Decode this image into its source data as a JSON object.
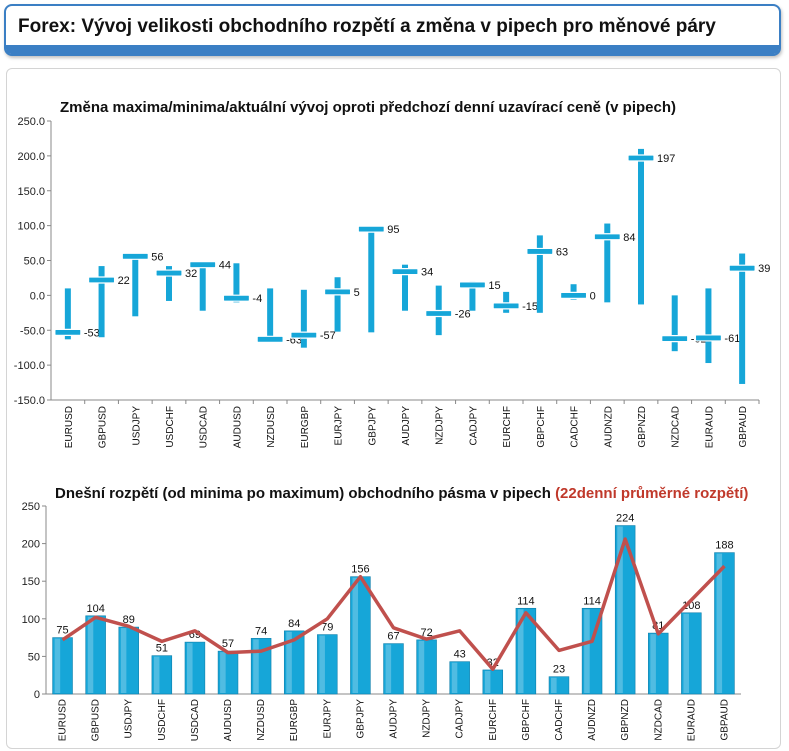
{
  "header": {
    "title": "Forex: Vývoj velikosti obchodního rozpětí a změna v pipech pro měnové páry"
  },
  "colors": {
    "accent": "#3b7fc4",
    "bar": "#16a6d8",
    "average_line": "#c0504d",
    "title_highlight": "#c0392b"
  },
  "chart_data": [
    {
      "type": "range",
      "title": "Změna maxima/minima/aktuální vývoj oproti předchozí denní uzavírací ceně (v pipech)",
      "ylim": [
        -150,
        250
      ],
      "yticks": [
        "-150.0",
        "-100.0",
        "-50.0",
        "0.0",
        "50.0",
        "100.0",
        "150.0",
        "200.0",
        "250.0"
      ],
      "categories": [
        "EURUSD",
        "GBPUSD",
        "USDJPY",
        "USDCHF",
        "USDCAD",
        "AUDUSD",
        "NZDUSD",
        "EURGBP",
        "EURJPY",
        "GBPJPY",
        "AUDJPY",
        "NZDJPY",
        "CADJPY",
        "EURCHF",
        "GBPCHF",
        "CADCHF",
        "AUDNZD",
        "GBPNZD",
        "NZDCAD",
        "EURAUD",
        "GBPAUD"
      ],
      "high": [
        10,
        42,
        58,
        42,
        46,
        46,
        10,
        8,
        26,
        100,
        44,
        14,
        20,
        5,
        86,
        16,
        103,
        210,
        0,
        10,
        60
      ],
      "low": [
        -63,
        -60,
        -30,
        -8,
        -22,
        -10,
        -62,
        -75,
        -52,
        -53,
        -22,
        -57,
        -22,
        -25,
        -25,
        -6,
        -10,
        -13,
        -80,
        -97,
        -127
      ],
      "current": [
        -53,
        22,
        56,
        32,
        44,
        -4,
        -63,
        -57,
        5,
        95,
        34,
        -26,
        15,
        -15,
        63,
        0,
        84,
        197,
        -62,
        -61,
        39
      ],
      "labels": [
        "-53",
        "22",
        "56",
        "32",
        "44",
        "-4",
        "-63",
        "-57",
        "5",
        "95",
        "34",
        "-26",
        "15",
        "-15",
        "63",
        "0",
        "84",
        "197",
        "-62",
        "-61",
        "39"
      ],
      "grid": false
    },
    {
      "type": "bar",
      "title_main": "Dnešní rozpětí (od minima po maximum) obchodního pásma v pipech",
      "title_highlight": "(22denní průměrné rozpětí)",
      "ylim": [
        0,
        250
      ],
      "yticks": [
        "0",
        "50",
        "100",
        "150",
        "200",
        "250"
      ],
      "categories": [
        "EURUSD",
        "GBPUSD",
        "USDJPY",
        "USDCHF",
        "USDCAD",
        "AUDUSD",
        "NZDUSD",
        "EURGBP",
        "EURJPY",
        "GBPJPY",
        "AUDJPY",
        "NZDJPY",
        "CADJPY",
        "EURCHF",
        "GBPCHF",
        "CADCHF",
        "AUDNZD",
        "GBPNZD",
        "NZDCAD",
        "EURAUD",
        "GBPAUD"
      ],
      "values": [
        75,
        104,
        89,
        51,
        69,
        57,
        74,
        84,
        79,
        156,
        67,
        72,
        43,
        32,
        114,
        23,
        114,
        224,
        81,
        108,
        188
      ],
      "average_22d": [
        72,
        102,
        90,
        70,
        84,
        55,
        57,
        72,
        100,
        156,
        88,
        73,
        84,
        33,
        108,
        58,
        70,
        206,
        80,
        125,
        170
      ],
      "grid": false
    }
  ]
}
